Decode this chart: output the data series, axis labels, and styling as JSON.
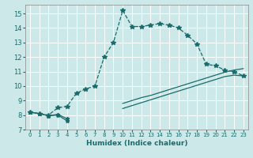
{
  "xlabel": "Humidex (Indice chaleur)",
  "background_color": "#cce8e8",
  "grid_color": "#ffffff",
  "line_color": "#1a6b6b",
  "xlim": [
    -0.5,
    23.5
  ],
  "ylim": [
    7.0,
    15.6
  ],
  "xticks": [
    0,
    1,
    2,
    3,
    4,
    5,
    6,
    7,
    8,
    9,
    10,
    11,
    12,
    13,
    14,
    15,
    16,
    17,
    18,
    19,
    20,
    21,
    22,
    23
  ],
  "yticks": [
    7,
    8,
    9,
    10,
    11,
    12,
    13,
    14,
    15
  ],
  "curve1_x": [
    0,
    1,
    2,
    3,
    4,
    5,
    6,
    7,
    8,
    9,
    10,
    11,
    12,
    13,
    14,
    15,
    16,
    17,
    18,
    19,
    20,
    21,
    22,
    23
  ],
  "curve1_y": [
    8.2,
    8.1,
    8.0,
    8.5,
    8.6,
    9.5,
    9.8,
    10.0,
    12.0,
    13.0,
    15.2,
    14.1,
    14.1,
    14.2,
    14.3,
    14.2,
    14.0,
    13.5,
    12.9,
    11.5,
    11.4,
    11.1,
    11.0,
    10.7
  ],
  "curve2_x": [
    0,
    1,
    2,
    3,
    4,
    10,
    11,
    12,
    13,
    14,
    15,
    16,
    17,
    18,
    19,
    20,
    21,
    22,
    23
  ],
  "curve2_y": [
    8.2,
    8.1,
    7.95,
    8.05,
    7.75,
    8.8,
    9.0,
    9.2,
    9.35,
    9.55,
    9.75,
    9.95,
    10.15,
    10.35,
    10.55,
    10.75,
    10.95,
    11.1,
    11.2
  ],
  "curve3_x": [
    0,
    1,
    2,
    3,
    4,
    10,
    11,
    12,
    13,
    14,
    15,
    16,
    17,
    18,
    19,
    20,
    21,
    22,
    23
  ],
  "curve3_y": [
    8.2,
    8.1,
    7.95,
    8.0,
    7.6,
    8.45,
    8.65,
    8.85,
    9.05,
    9.25,
    9.45,
    9.65,
    9.85,
    10.05,
    10.25,
    10.45,
    10.65,
    10.75,
    10.7
  ]
}
